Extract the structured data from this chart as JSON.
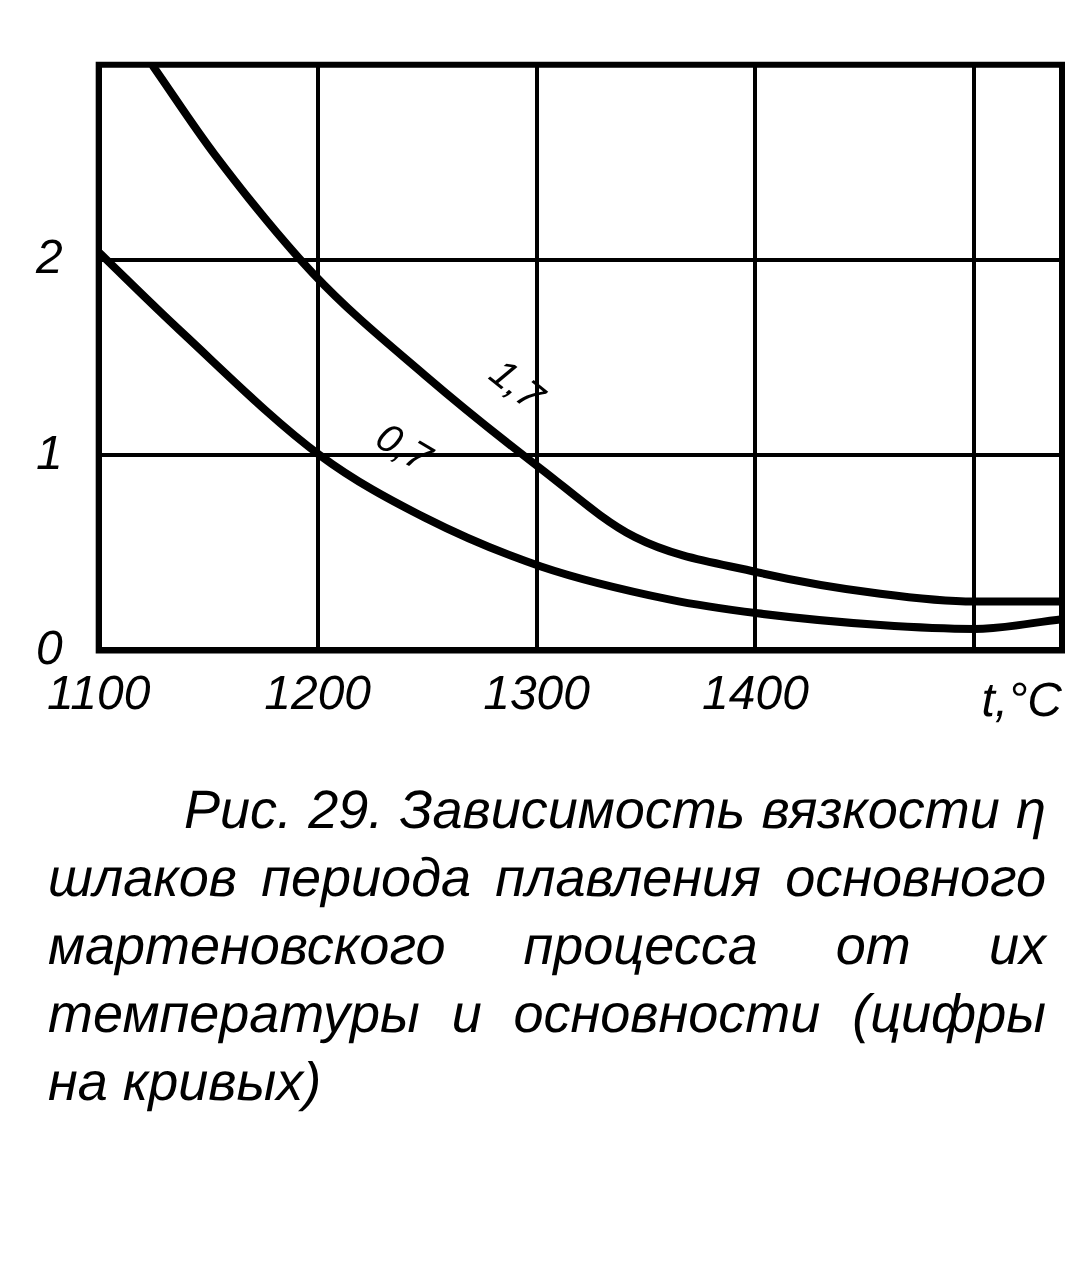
{
  "chart_data": {
    "type": "line",
    "xlabel": "t,°C",
    "xlim": [
      1100,
      1540
    ],
    "xticks": [
      1100,
      1200,
      1300,
      1400,
      {
        "value": 1500,
        "label": null
      }
    ],
    "ylim": [
      0,
      3
    ],
    "yticks": [
      0,
      1,
      2
    ],
    "grid": true,
    "legend": false,
    "marker": "none",
    "line_style": "solid",
    "series": [
      {
        "name": "1,7",
        "color": "#000000",
        "x": [
          1125,
          1153,
          1198,
          1249,
          1302,
          1345,
          1401,
          1457,
          1500,
          1540
        ],
        "values": [
          2.99,
          2.54,
          1.93,
          1.41,
          0.93,
          0.58,
          0.4,
          0.29,
          0.25,
          0.25
        ]
      },
      {
        "name": "0,7",
        "color": "#000000",
        "x": [
          1100,
          1137,
          1201,
          1249,
          1302,
          1361,
          1401,
          1457,
          1500,
          1540
        ],
        "values": [
          2.04,
          1.64,
          1.0,
          0.68,
          0.43,
          0.26,
          0.19,
          0.13,
          0.11,
          0.16
        ]
      }
    ],
    "annotations": [
      "Рис. 29. Зависимость вязкости η шлаков периода плавления основного мартеновского процесса от их температуры и основности (цифры на кривых)"
    ]
  }
}
